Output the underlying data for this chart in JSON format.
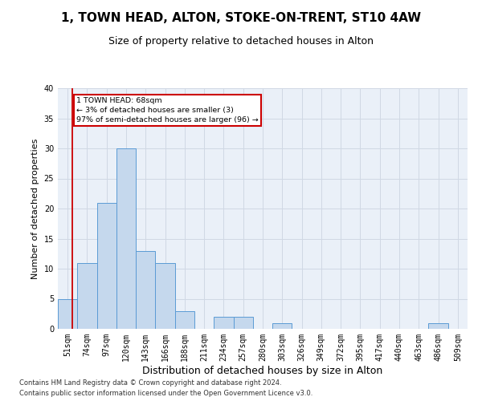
{
  "title": "1, TOWN HEAD, ALTON, STOKE-ON-TRENT, ST10 4AW",
  "subtitle": "Size of property relative to detached houses in Alton",
  "xlabel": "Distribution of detached houses by size in Alton",
  "ylabel": "Number of detached properties",
  "footnote1": "Contains HM Land Registry data © Crown copyright and database right 2024.",
  "footnote2": "Contains public sector information licensed under the Open Government Licence v3.0.",
  "categories": [
    "51sqm",
    "74sqm",
    "97sqm",
    "120sqm",
    "143sqm",
    "166sqm",
    "188sqm",
    "211sqm",
    "234sqm",
    "257sqm",
    "280sqm",
    "303sqm",
    "326sqm",
    "349sqm",
    "372sqm",
    "395sqm",
    "417sqm",
    "440sqm",
    "463sqm",
    "486sqm",
    "509sqm"
  ],
  "values": [
    5,
    11,
    21,
    30,
    13,
    11,
    3,
    0,
    2,
    2,
    0,
    1,
    0,
    0,
    0,
    0,
    0,
    0,
    0,
    1,
    0
  ],
  "bar_color": "#c5d8ed",
  "bar_edge_color": "#5b9bd5",
  "property_line_label": "1 TOWN HEAD: 68sqm",
  "annotation_line1": "← 3% of detached houses are smaller (3)",
  "annotation_line2": "97% of semi-detached houses are larger (96) →",
  "annotation_box_color": "#ffffff",
  "annotation_box_edge_color": "#cc0000",
  "property_line_color": "#cc0000",
  "ylim": [
    0,
    40
  ],
  "yticks": [
    0,
    5,
    10,
    15,
    20,
    25,
    30,
    35,
    40
  ],
  "grid_color": "#d0d8e4",
  "background_color": "#eaf0f8",
  "title_fontsize": 11,
  "subtitle_fontsize": 9,
  "ylabel_fontsize": 8,
  "xlabel_fontsize": 9,
  "tick_fontsize": 7,
  "footnote_fontsize": 6
}
